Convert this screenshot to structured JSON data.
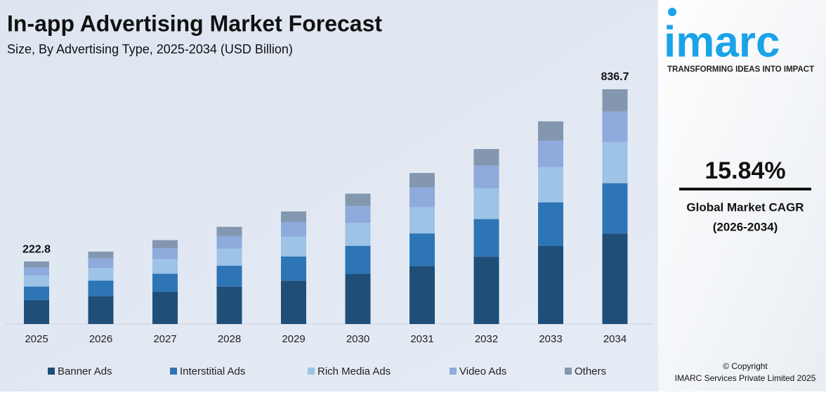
{
  "chart_data": {
    "type": "stacked_bar",
    "title": "In-app Advertising Market Forecast",
    "subtitle": "Size, By Advertising Type, 2025-2034 (USD Billion)",
    "categories": [
      "2025",
      "2026",
      "2027",
      "2028",
      "2029",
      "2030",
      "2031",
      "2032",
      "2033",
      "2034"
    ],
    "series": [
      {
        "name": "Banner Ads",
        "color": "#1f4e79",
        "values": [
          85.8,
          99.4,
          115.1,
          133.3,
          154.5,
          178.9,
          207.2,
          240.1,
          278.1,
          322.1
        ]
      },
      {
        "name": "Interstitial Ads",
        "color": "#2e75b6",
        "values": [
          47.9,
          55.5,
          64.3,
          74.5,
          86.3,
          99.9,
          115.7,
          134.1,
          155.3,
          179.9
        ]
      },
      {
        "name": "Rich Media Ads",
        "color": "#9dc3e6",
        "values": [
          39.0,
          45.2,
          52.3,
          60.6,
          70.2,
          81.3,
          94.2,
          109.1,
          126.4,
          146.4
        ]
      },
      {
        "name": "Video Ads",
        "color": "#8faadc",
        "values": [
          29.0,
          33.6,
          38.9,
          45.0,
          52.2,
          60.4,
          70.0,
          81.1,
          93.9,
          108.8
        ]
      },
      {
        "name": "Others",
        "color": "#8497b0",
        "values": [
          21.1,
          24.4,
          28.4,
          32.9,
          38.0,
          44.2,
          51.2,
          59.2,
          68.6,
          79.5
        ]
      }
    ],
    "total_labels": [
      {
        "category": "2025",
        "value": 222.8
      },
      {
        "category": "2034",
        "value": 836.7
      }
    ],
    "legend": "bottom"
  },
  "sidebar": {
    "logo": "imarc",
    "tagline": "TRANSFORMING IDEAS INTO IMPACT",
    "cagr": "15.84%",
    "cagr_label": "Global Market CAGR",
    "cagr_period": "(2026-2034)",
    "copyright": "© Copyright",
    "company": "IMARC Services Private Limited 2025"
  }
}
